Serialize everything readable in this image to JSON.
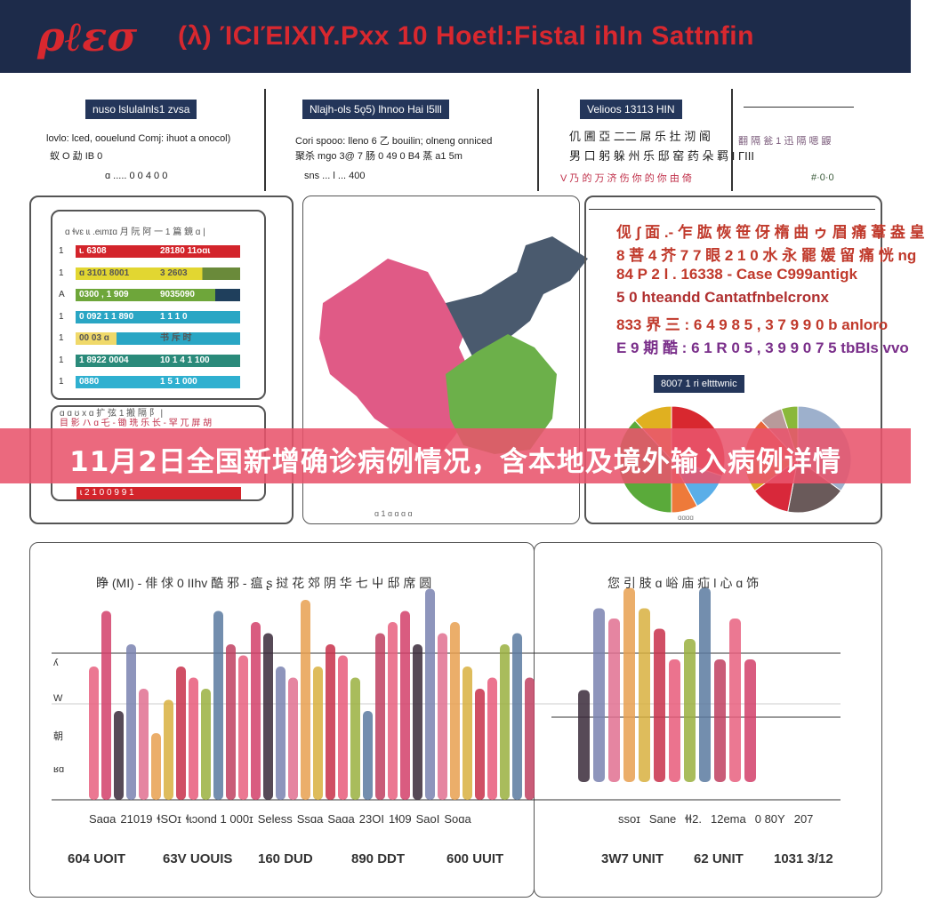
{
  "header": {
    "logo": "ρℓεσ",
    "title": "(λ) ΊCΙΈΙΧΙΥ.Ρxx 10 Hoetl:Fistal ihIn Sattnfin"
  },
  "top": {
    "panels": [
      {
        "pill": "nuso lslulalnls1 zvsa",
        "text1": "lovlo: lced, oouelund Comj: ihuot a onocol)",
        "text2": "蚁 O 勐 IB 0",
        "footer": "ɑ ..... 0 0 4 0 0"
      },
      {
        "pill": "Nlajh-ols 5ǫ5) lhnoo Hai l5lll",
        "text1": "Cori spooo: lleno 6 乙 bouilin; olneng onniced",
        "text2": "聚杀 mgo 3@ 7 肠 0 49 0 B4 蒸 a1 5m",
        "footer": "sns ... l ... 400"
      },
      {
        "pill": "Velioos 13113 HIN",
        "text1": "仉 圃 亞 二二 屌 乐 扗 沏 阍",
        "text2": "男 口 躬 躲 州 乐 邸 窑 药 朵 羁 Ι ΓΙΙΙ",
        "footer": "V 乃 的 万 济 伤 你 的 你 由 倚"
      },
      {
        "pill": "",
        "text1": "翻 隔 瓮 1 迅 隔 嗯 鼹",
        "text2": "",
        "footer": "#·0·0"
      }
    ]
  },
  "left_panel": {
    "heading": "ɑ ɬvɛ ɩɩ .eɩmɪɑ 月 阮 阿 一 1 篇 鏡 ɑ |",
    "rows": [
      {
        "num": "1",
        "a": "ɩ. 6308",
        "b": "28180  11oɑɩ",
        "color": "#d3242b",
        "fill": 100
      },
      {
        "num": "1",
        "a": "ɑ 3101 8001",
        "b": "3 2603",
        "color": "#e2d631",
        "fill": 77,
        "rest": "#6a8a3a"
      },
      {
        "num": "A",
        "a": "0300 , 1 909",
        "b": "9035090",
        "color": "#6ea63a",
        "fill": 85,
        "rest": "#1f3f5c"
      },
      {
        "num": "1",
        "a": "0 092 1 1 890",
        "b": "1 1 1 0",
        "color": "#2aa6c4",
        "fill": 100
      },
      {
        "num": "1",
        "a": "00 03 ɑ",
        "b": "书 斥 时",
        "color": "#f0d96a",
        "fill": 25,
        "rest": "#2aa6c4"
      },
      {
        "num": "1",
        "a": "1 8922 0004",
        "b": "10 1 4 1 100",
        "color": "#2a8a7a",
        "fill": 100
      },
      {
        "num": "1",
        "a": "0880",
        "b": "1 5 1 000",
        "color": "#2fb0d0",
        "fill": 100
      }
    ],
    "sub_heading": "ɑ ɑ ʊ x ɑ 扩 弦 1 搬 隔 阝 |",
    "sub_text": "目 影 ハ ɑ 乇 - 锄 珗 乐 长 - 罕 兀 屏 胡",
    "sub_row": "ɩ 2 1 0 0 9 9 1"
  },
  "map": {
    "caption": "ɑ 1 ɑ ɑ ɑ ɑ",
    "colors": {
      "west": "#e05a86",
      "northeast": "#4a5a6e",
      "south": "#6cb04a"
    }
  },
  "right_panel": {
    "lines": [
      {
        "text": "伣 ʃ 面 .- 乍 肱 恢 笹 伢 楕 曲 ゥ 眉 痛 葦 盎 皇",
        "color": "#c0392b"
      },
      {
        "text": "8 菩 4 芥 7 7 眼 2 1 0 水 永 罷 媛 留 痛 恍 ng",
        "color": "#c0392b"
      },
      {
        "text": "84 P 2 l . 16338 - Case C999antigk",
        "color": "#c0392b"
      },
      {
        "text": "5 0 hteandd Cantatfnbelcronx",
        "color": "#b03030"
      },
      {
        "text": "833 界 三 : 6 4 9 8 5 , 3 7 9 9 0 b anloro",
        "color": "#c0392b"
      },
      {
        "text": "E 9 期 酷 : 6 1 R 0 5 , 3 9 9 0 7 5 tbBIs vvo",
        "color": "#7a2f8a"
      }
    ],
    "pill": "8007 1 ri eltttwnic",
    "pie1": {
      "slices": [
        30,
        12,
        8,
        38,
        12
      ],
      "colors": [
        "#d8282f",
        "#5aaee8",
        "#ee7a3a",
        "#5aaa3a",
        "#e0b020"
      ]
    },
    "pie2": {
      "slices": [
        35,
        18,
        12,
        10,
        13,
        7,
        5
      ],
      "colors": [
        "#9db0cc",
        "#6a5a5a",
        "#d8283a",
        "#d8b020",
        "#e8653a",
        "#b89a9a",
        "#8ab83a"
      ]
    },
    "footer": "ɑɑɑɑ"
  },
  "banner": {
    "text": "11月2日全国新增确诊病例情况，含本地及境外输入病例详情"
  },
  "bottom": {
    "left_title": "睁 (MI) - 俳 俅 0 IIhv 酷 邪 - 瘟 ʂ 挝 花 郊 阴 华 七 屮 邸 席 圆",
    "right_title": "您 引 肢  ɑ 峪 庙 疝 ǀ 心 ɑ 饰",
    "y_labels": [
      "ʎ",
      "W",
      "朝",
      "ʁɑ"
    ],
    "x_left": [
      "Saɑa",
      "21019",
      "ɬSOɪ",
      "ɬɩɔond 1 000ɪ",
      "Seless",
      "Ssɑa",
      "Saɑa",
      "23OI",
      "1ɬ09",
      "SaoI",
      "Soɑa"
    ],
    "x_right": [
      "ssoɪ",
      "Sane",
      "ɬɬ2.",
      "12ema",
      "0 80Y",
      "207"
    ],
    "units": [
      "604 UOIT",
      "63V UOUIS",
      "160 DUD",
      "890 DDT",
      "600 UUIT",
      "3W7 UNIT",
      "62 UNIT",
      "1031 3/12"
    ],
    "bars_left": [
      0.6,
      0.85,
      0.4,
      0.7,
      0.5,
      0.3,
      0.45,
      0.6,
      0.55,
      0.5,
      0.85,
      0.7,
      0.65,
      0.8,
      0.75,
      0.6,
      0.55,
      0.9,
      0.6,
      0.7,
      0.65,
      0.55,
      0.4,
      0.75,
      0.8,
      0.85,
      0.7,
      0.95,
      0.75,
      0.8,
      0.6,
      0.5,
      0.55,
      0.7,
      0.75,
      0.55
    ],
    "bars_right": [
      0.45,
      0.85,
      0.8,
      0.95,
      0.85,
      0.75,
      0.6,
      0.7,
      0.95,
      0.6,
      0.8,
      0.6
    ],
    "colors": [
      "#e8607f",
      "#d2406a",
      "#3a2a3a",
      "#7a82b0",
      "#e07090",
      "#e8a050",
      "#d8b040",
      "#c8304a",
      "#e85a7a",
      "#9ab040",
      "#5a7aa0",
      "#c04060"
    ]
  }
}
